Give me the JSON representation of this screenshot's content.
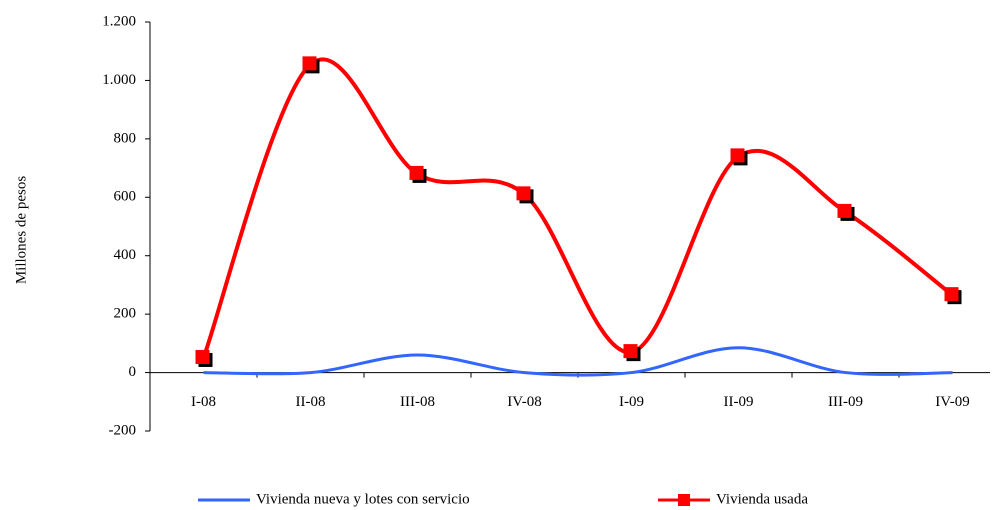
{
  "chart_data": {
    "type": "line",
    "y_label": "Millones de pesos",
    "categories": [
      "I-08",
      "II-08",
      "III-08",
      "IV-08",
      "I-09",
      "II-09",
      "III-09",
      "IV-09"
    ],
    "series": [
      {
        "name": "Vivienda nueva y lotes con servicio",
        "color": "#3366ff",
        "values": [
          0,
          0,
          60,
          0,
          0,
          85,
          0,
          0
        ]
      },
      {
        "name": "Vivienda usada",
        "color": "#ff0000",
        "values": [
          50,
          1055,
          680,
          610,
          70,
          740,
          550,
          265
        ]
      }
    ],
    "ylim": [
      -200,
      1200
    ],
    "yticks": [
      -200,
      0,
      200,
      400,
      600,
      800,
      {
        "value": 1000,
        "label": "1.000"
      },
      {
        "value": 1200,
        "label": "1.200"
      }
    ],
    "smooth": true,
    "legend": "bottom"
  }
}
